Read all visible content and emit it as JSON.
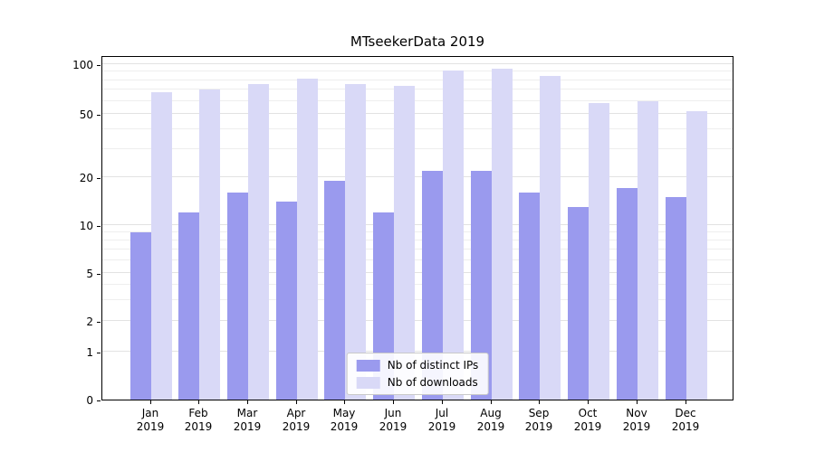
{
  "chart_data": {
    "type": "bar",
    "title": "MTseekerData 2019",
    "categories": [
      "Jan",
      "Feb",
      "Mar",
      "Apr",
      "May",
      "Jun",
      "Jul",
      "Aug",
      "Sep",
      "Oct",
      "Nov",
      "Dec"
    ],
    "year": "2019",
    "series": [
      {
        "name": "Nb of distinct IPs",
        "color": "#9a9aee",
        "values": [
          9,
          12,
          16,
          14,
          19,
          12,
          22,
          22,
          16,
          13,
          17,
          15
        ]
      },
      {
        "name": "Nb of downloads",
        "color": "#d9d9f7",
        "values": [
          68,
          70,
          76,
          82,
          76,
          74,
          92,
          94,
          85,
          58,
          60,
          52
        ]
      }
    ],
    "yscale": "symlog",
    "yticks": [
      0,
      1,
      2,
      5,
      10,
      20,
      50,
      100
    ],
    "yticks_minor": [
      3,
      4,
      6,
      7,
      8,
      9,
      30,
      40,
      60,
      70,
      80,
      90
    ],
    "ylim": [
      0,
      115
    ],
    "grid": true,
    "legend_position": "lower center"
  }
}
